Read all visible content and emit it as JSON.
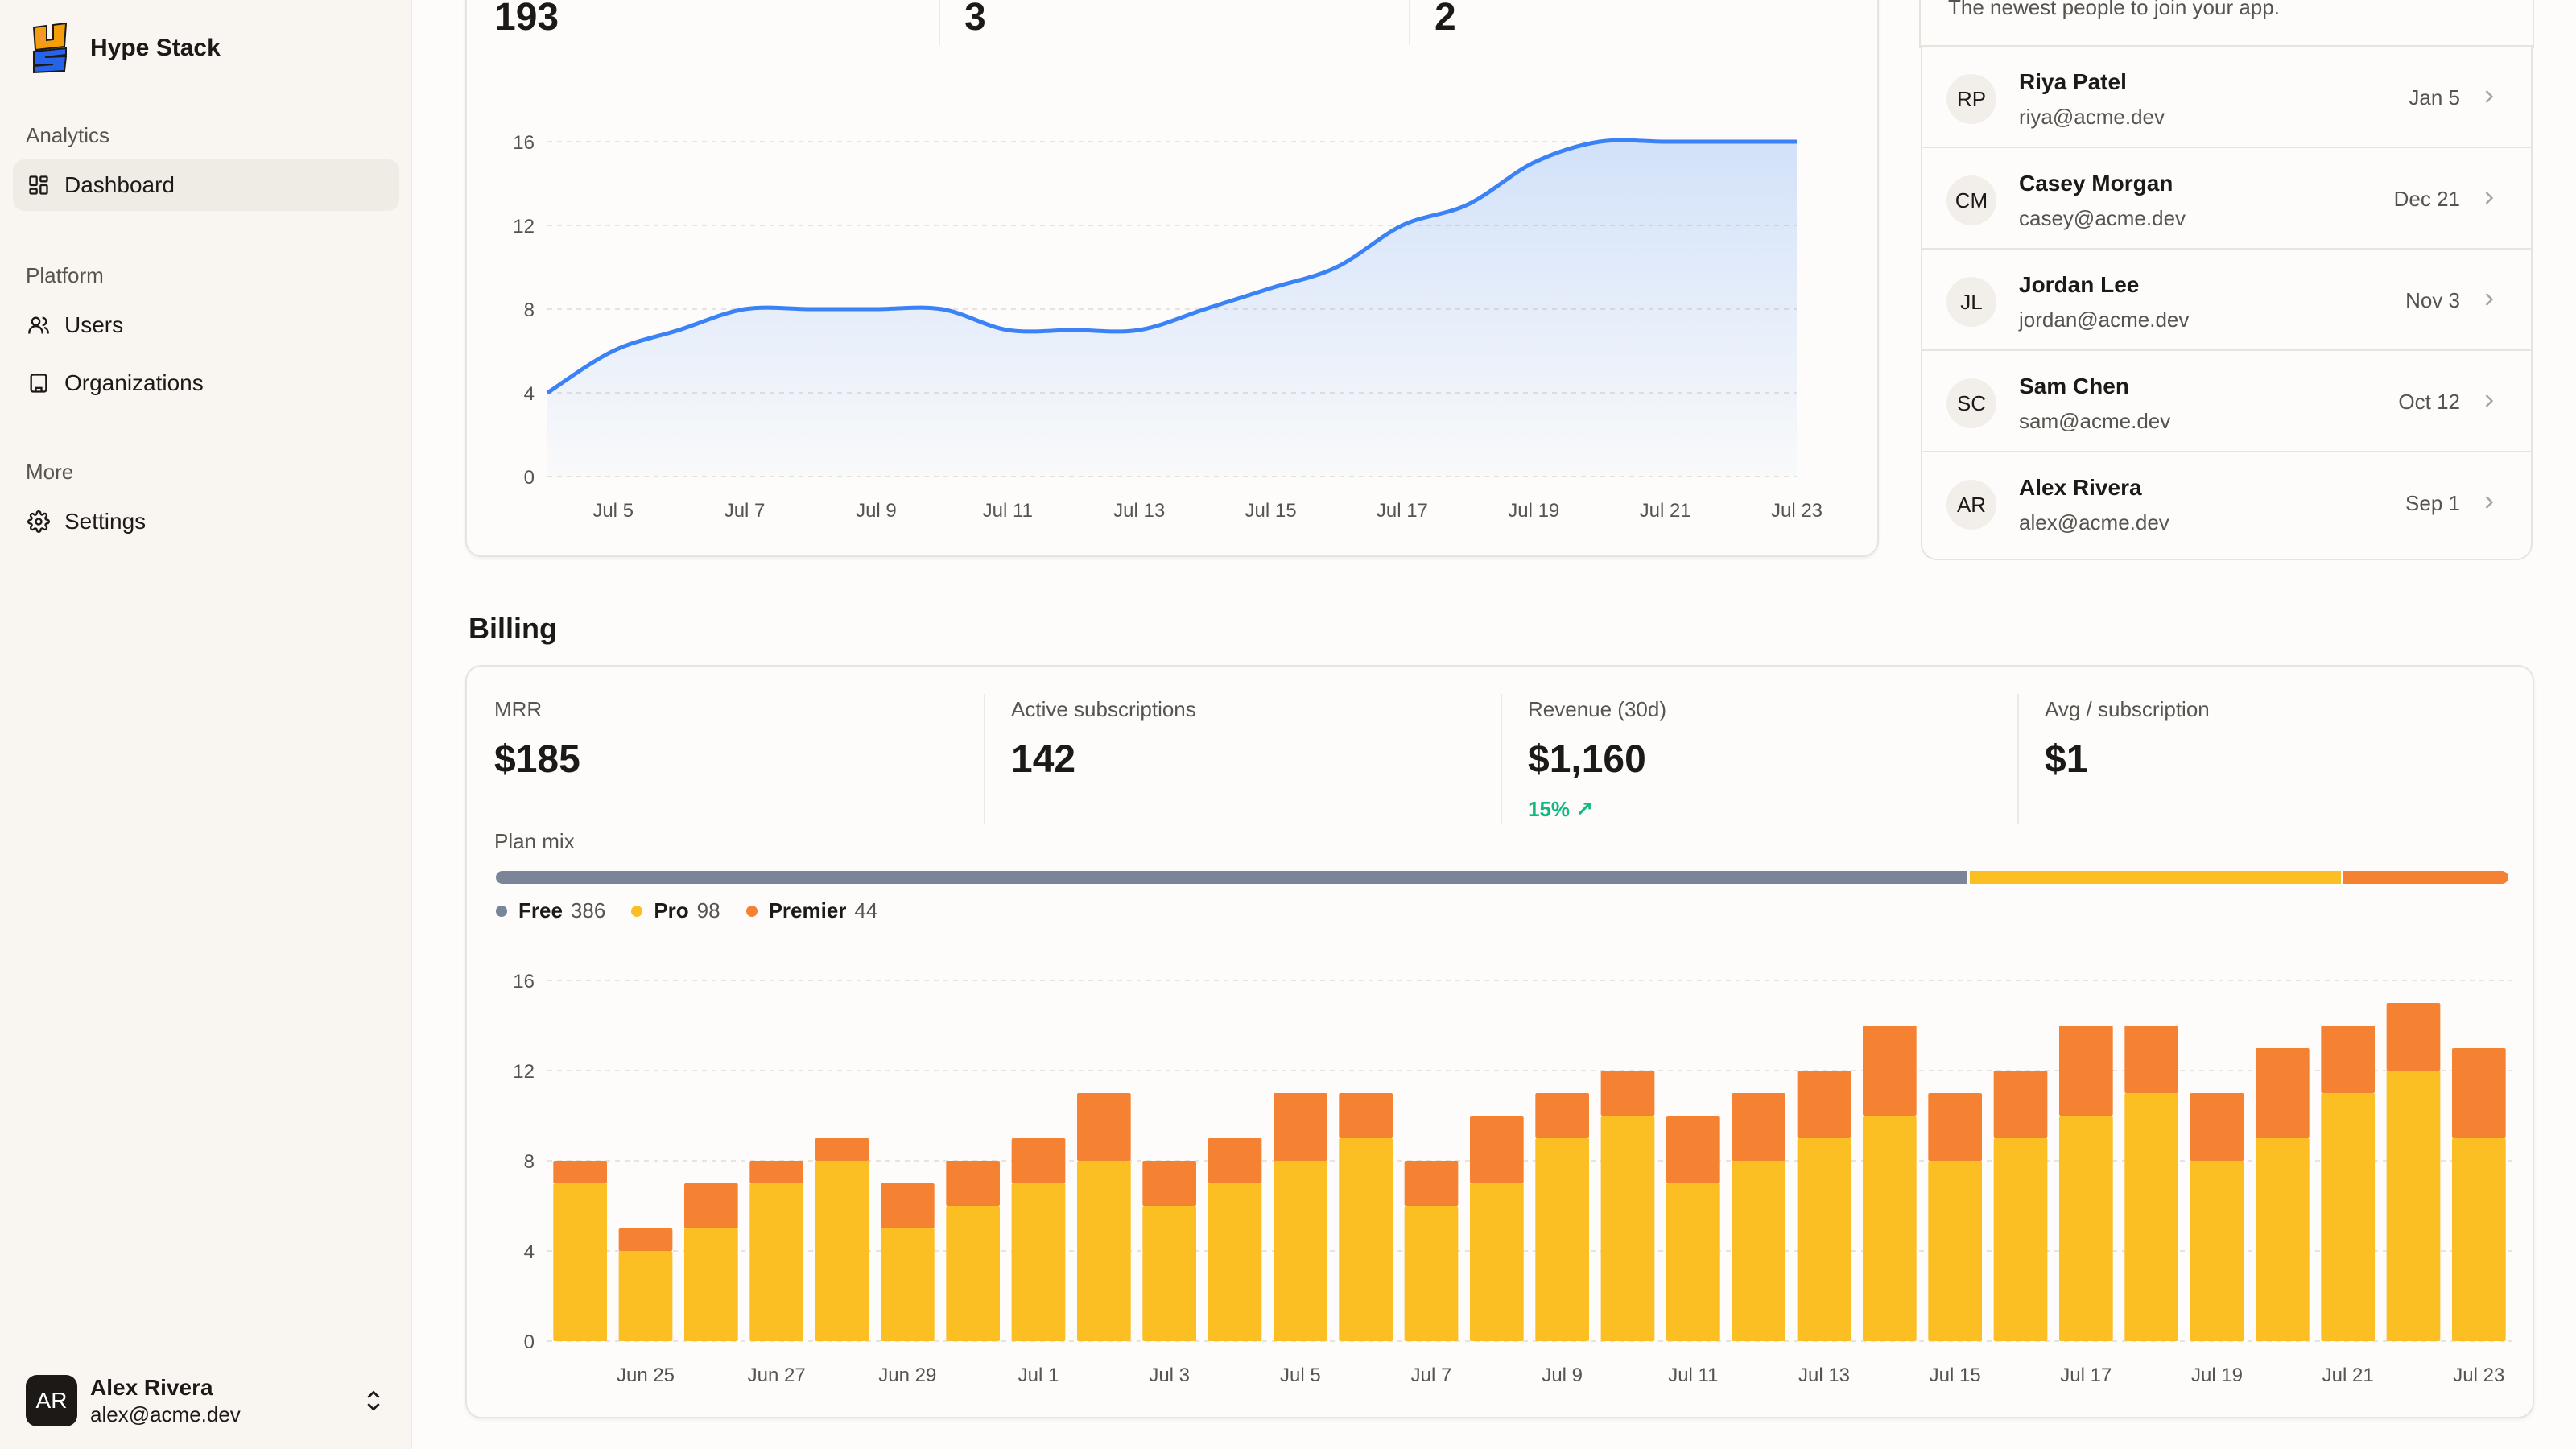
{
  "brand": {
    "name": "Hype Stack"
  },
  "nav": {
    "sections": [
      {
        "heading": "Analytics",
        "items": [
          {
            "label": "Dashboard",
            "icon": "dashboard-icon",
            "active": true
          }
        ]
      },
      {
        "heading": "Platform",
        "items": [
          {
            "label": "Users",
            "icon": "users-icon"
          },
          {
            "label": "Organizations",
            "icon": "building-icon"
          }
        ]
      },
      {
        "heading": "More",
        "items": [
          {
            "label": "Settings",
            "icon": "gear-icon"
          }
        ]
      }
    ]
  },
  "user": {
    "initials": "AR",
    "name": "Alex Rivera",
    "email": "alex@acme.dev"
  },
  "top_stats": [
    "193",
    "3",
    "2"
  ],
  "signups": {
    "subtitle": "The newest people to join your app.",
    "items": [
      {
        "initials": "RP",
        "name": "Riya Patel",
        "email": "riya@acme.dev",
        "date": "Jan 5"
      },
      {
        "initials": "CM",
        "name": "Casey Morgan",
        "email": "casey@acme.dev",
        "date": "Dec 21"
      },
      {
        "initials": "JL",
        "name": "Jordan Lee",
        "email": "jordan@acme.dev",
        "date": "Nov 3"
      },
      {
        "initials": "SC",
        "name": "Sam Chen",
        "email": "sam@acme.dev",
        "date": "Oct 12"
      },
      {
        "initials": "AR",
        "name": "Alex Rivera",
        "email": "alex@acme.dev",
        "date": "Sep 1"
      }
    ]
  },
  "billing": {
    "title": "Billing",
    "stats": [
      {
        "label": "MRR",
        "value": "$185"
      },
      {
        "label": "Active subscriptions",
        "value": "142"
      },
      {
        "label": "Revenue (30d)",
        "value": "$1,160",
        "trend": "15% ↗"
      },
      {
        "label": "Avg / subscription",
        "value": "$1"
      }
    ],
    "plan_mix": {
      "label": "Plan mix",
      "plans": [
        {
          "name": "Free",
          "count": 386,
          "count_label": "386",
          "color": "#7b8599"
        },
        {
          "name": "Pro",
          "count": 98,
          "count_label": "98",
          "color": "#fbbf24"
        },
        {
          "name": "Premier",
          "count": 44,
          "count_label": "44",
          "color": "#f58233"
        }
      ]
    }
  },
  "chart_data": [
    {
      "type": "area",
      "x": [
        "Jul 4",
        "Jul 5",
        "Jul 6",
        "Jul 7",
        "Jul 8",
        "Jul 9",
        "Jul 10",
        "Jul 11",
        "Jul 12",
        "Jul 13",
        "Jul 14",
        "Jul 15",
        "Jul 16",
        "Jul 17",
        "Jul 18",
        "Jul 19",
        "Jul 20",
        "Jul 21",
        "Jul 22",
        "Jul 23"
      ],
      "xticks": [
        "Jul 5",
        "Jul 7",
        "Jul 9",
        "Jul 11",
        "Jul 13",
        "Jul 15",
        "Jul 17",
        "Jul 19",
        "Jul 21",
        "Jul 23"
      ],
      "values": [
        4,
        6,
        7,
        8,
        8,
        8,
        8,
        7,
        7,
        7,
        8,
        9,
        10,
        12,
        13,
        15,
        16,
        16,
        16,
        16
      ],
      "yticks": [
        0,
        4,
        8,
        12,
        16
      ],
      "ylim": [
        0,
        17
      ],
      "color": "#3b82f6",
      "grid": true
    },
    {
      "type": "bar",
      "stacked": true,
      "x": [
        "Jun 24",
        "Jun 25",
        "Jun 26",
        "Jun 27",
        "Jun 28",
        "Jun 29",
        "Jun 30",
        "Jul 1",
        "Jul 2",
        "Jul 3",
        "Jul 4",
        "Jul 5",
        "Jul 6",
        "Jul 7",
        "Jul 8",
        "Jul 9",
        "Jul 10",
        "Jul 11",
        "Jul 12",
        "Jul 13",
        "Jul 14",
        "Jul 15",
        "Jul 16",
        "Jul 17",
        "Jul 18",
        "Jul 19",
        "Jul 20",
        "Jul 21",
        "Jul 22",
        "Jul 23"
      ],
      "xticks": [
        "Jun 25",
        "Jun 27",
        "Jun 29",
        "Jul 1",
        "Jul 3",
        "Jul 5",
        "Jul 7",
        "Jul 9",
        "Jul 11",
        "Jul 13",
        "Jul 15",
        "Jul 17",
        "Jul 19",
        "Jul 21",
        "Jul 23"
      ],
      "series": [
        {
          "color": "#fbbf24",
          "values": [
            7,
            4,
            5,
            7,
            8,
            5,
            6,
            7,
            8,
            6,
            7,
            8,
            9,
            6,
            7,
            9,
            10,
            7,
            8,
            9,
            10,
            8,
            9,
            10,
            11,
            8,
            9,
            11,
            12,
            9
          ]
        },
        {
          "color": "#f58233",
          "values": [
            1,
            1,
            2,
            1,
            1,
            2,
            2,
            2,
            3,
            2,
            2,
            3,
            2,
            2,
            3,
            2,
            2,
            3,
            3,
            3,
            4,
            3,
            3,
            4,
            3,
            3,
            4,
            3,
            3,
            4
          ]
        }
      ],
      "yticks": [
        0,
        4,
        8,
        12,
        16
      ],
      "ylim": [
        0,
        16
      ],
      "grid": true
    }
  ]
}
